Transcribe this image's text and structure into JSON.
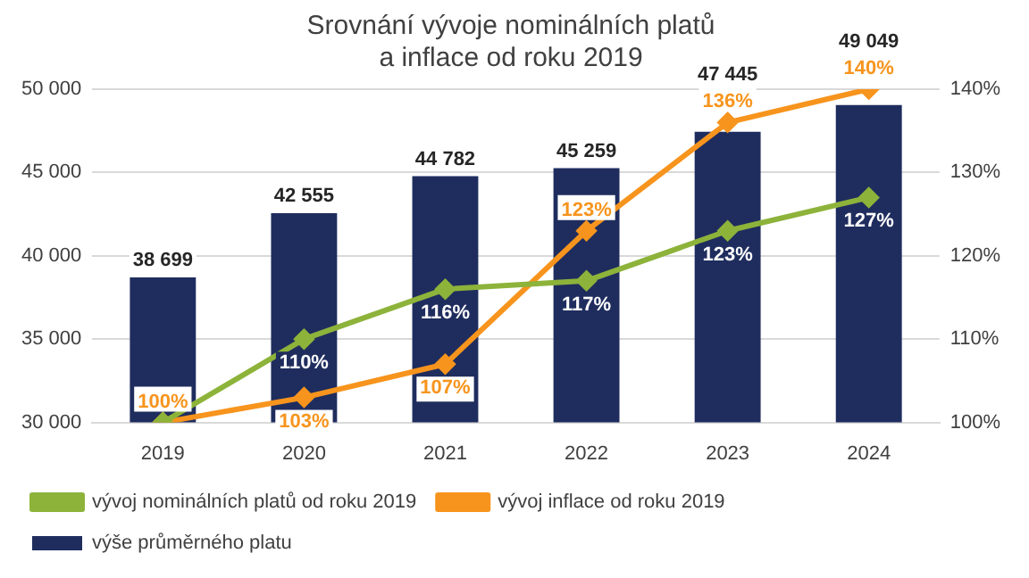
{
  "chart_data": {
    "type": "bar",
    "title": "Srovnání vývoje nominálních platů\na inflace od roku 2019",
    "categories": [
      "2019",
      "2020",
      "2021",
      "2022",
      "2023",
      "2024"
    ],
    "series": [
      {
        "name": "výše průměrného platu",
        "color": "#1f2d5e",
        "values": [
          38699,
          42555,
          44782,
          45259,
          47445,
          49049
        ],
        "value_labels": [
          "38 699",
          "42 555",
          "44 782",
          "45 259",
          "47 445",
          "49 049"
        ]
      },
      {
        "name": "vývoj nominálních platů od roku 2019",
        "type": "line",
        "axis": "y2",
        "color": "#8db33a",
        "marker": "diamond",
        "values": [
          100,
          110,
          116,
          117,
          123,
          127
        ],
        "value_labels": [
          null,
          "110%",
          "116%",
          "117%",
          "123%",
          "127%"
        ]
      },
      {
        "name": "vývoj inflace od roku 2019",
        "type": "line",
        "axis": "y2",
        "color": "#f7941d",
        "marker": "diamond",
        "values": [
          100,
          103,
          107,
          123,
          136,
          140
        ],
        "value_labels": [
          "100%",
          "103%",
          "107%",
          "123%",
          "136%",
          "140%"
        ]
      }
    ],
    "ylim": [
      30000,
      50000
    ],
    "yticks": [
      {
        "value": 30000,
        "label": "30 000"
      },
      {
        "value": 35000,
        "label": "35 000"
      },
      {
        "value": 40000,
        "label": "40 000"
      },
      {
        "value": 45000,
        "label": "45 000"
      },
      {
        "value": 50000,
        "label": "50 000"
      }
    ],
    "y2lim": [
      100,
      140
    ],
    "y2ticks": [
      {
        "value": 100,
        "label": "100%"
      },
      {
        "value": 110,
        "label": "110%"
      },
      {
        "value": 120,
        "label": "120%"
      },
      {
        "value": 130,
        "label": "130%"
      },
      {
        "value": 140,
        "label": "140%"
      }
    ],
    "grid": "y",
    "legend": "bottom"
  }
}
